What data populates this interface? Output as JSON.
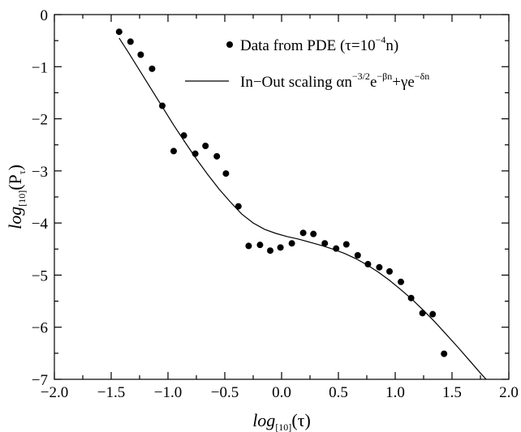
{
  "chart_data": {
    "type": "scatter",
    "title": "",
    "xlabel": {
      "base": "log",
      "sub": "[10]",
      "arg": "(τ)"
    },
    "ylabel": {
      "base": "log",
      "sub": "[10]",
      "arg": "(P",
      "arg_sub": "τ",
      "arg_close": ")"
    },
    "xlim": [
      -2.0,
      2.0
    ],
    "ylim": [
      -7,
      0
    ],
    "xticks": [
      -2.0,
      -1.5,
      -1.0,
      -0.5,
      0.0,
      0.5,
      1.0,
      1.5,
      2.0
    ],
    "xtick_labels": [
      "−2.0",
      "−1.5",
      "−1.0",
      "−0.5",
      "0.0",
      "0.5",
      "1.0",
      "1.5",
      "2.0"
    ],
    "yticks": [
      0,
      -1,
      -2,
      -3,
      -4,
      -5,
      -6,
      -7
    ],
    "ytick_labels": [
      "0",
      "−1",
      "−2",
      "−3",
      "−4",
      "−5",
      "−6",
      "−7"
    ],
    "grid": false,
    "legend_position": "top-right",
    "series": [
      {
        "name": "Data from PDE (τ=10^-4 n)",
        "name_parts": {
          "a": "Data from PDE (τ=10",
          "sup": "−4",
          "b": "n)"
        },
        "type": "scatter",
        "points": [
          [
            -1.43,
            -0.33
          ],
          [
            -1.33,
            -0.52
          ],
          [
            -1.24,
            -0.77
          ],
          [
            -1.14,
            -1.04
          ],
          [
            -1.05,
            -1.75
          ],
          [
            -0.95,
            -2.62
          ],
          [
            -0.86,
            -2.32
          ],
          [
            -0.76,
            -2.67
          ],
          [
            -0.67,
            -2.52
          ],
          [
            -0.57,
            -2.72
          ],
          [
            -0.49,
            -3.05
          ],
          [
            -0.38,
            -3.68
          ],
          [
            -0.29,
            -4.44
          ],
          [
            -0.19,
            -4.42
          ],
          [
            -0.1,
            -4.53
          ],
          [
            -0.01,
            -4.47
          ],
          [
            0.09,
            -4.39
          ],
          [
            0.19,
            -4.19
          ],
          [
            0.28,
            -4.21
          ],
          [
            0.38,
            -4.39
          ],
          [
            0.48,
            -4.49
          ],
          [
            0.57,
            -4.41
          ],
          [
            0.67,
            -4.62
          ],
          [
            0.76,
            -4.79
          ],
          [
            0.86,
            -4.85
          ],
          [
            0.95,
            -4.93
          ],
          [
            1.05,
            -5.13
          ],
          [
            1.14,
            -5.44
          ],
          [
            1.24,
            -5.73
          ],
          [
            1.33,
            -5.75
          ],
          [
            1.43,
            -6.51
          ]
        ]
      },
      {
        "name": "In−Out scaling αn^-3/2 e^-βn+γe^-δn",
        "name_parts": {
          "a": "In−Out scaling αn",
          "sup1": "−3/2",
          "b": "e",
          "sup2": "−βn",
          "c": "+γe",
          "sup3": "−δn"
        },
        "type": "line",
        "points": [
          [
            -1.43,
            -0.45
          ],
          [
            -1.35,
            -0.72
          ],
          [
            -1.25,
            -1.07
          ],
          [
            -1.15,
            -1.42
          ],
          [
            -1.05,
            -1.77
          ],
          [
            -0.95,
            -2.12
          ],
          [
            -0.85,
            -2.45
          ],
          [
            -0.75,
            -2.77
          ],
          [
            -0.65,
            -3.07
          ],
          [
            -0.55,
            -3.35
          ],
          [
            -0.45,
            -3.6
          ],
          [
            -0.35,
            -3.83
          ],
          [
            -0.25,
            -4.0
          ],
          [
            -0.15,
            -4.12
          ],
          [
            -0.05,
            -4.2
          ],
          [
            0.05,
            -4.26
          ],
          [
            0.15,
            -4.31
          ],
          [
            0.25,
            -4.37
          ],
          [
            0.35,
            -4.43
          ],
          [
            0.45,
            -4.5
          ],
          [
            0.55,
            -4.58
          ],
          [
            0.65,
            -4.68
          ],
          [
            0.75,
            -4.8
          ],
          [
            0.85,
            -4.94
          ],
          [
            0.95,
            -5.1
          ],
          [
            1.05,
            -5.28
          ],
          [
            1.15,
            -5.47
          ],
          [
            1.25,
            -5.68
          ],
          [
            1.35,
            -5.9
          ],
          [
            1.45,
            -6.14
          ],
          [
            1.55,
            -6.38
          ],
          [
            1.65,
            -6.63
          ],
          [
            1.75,
            -6.88
          ],
          [
            1.8,
            -7.0
          ]
        ]
      }
    ]
  }
}
